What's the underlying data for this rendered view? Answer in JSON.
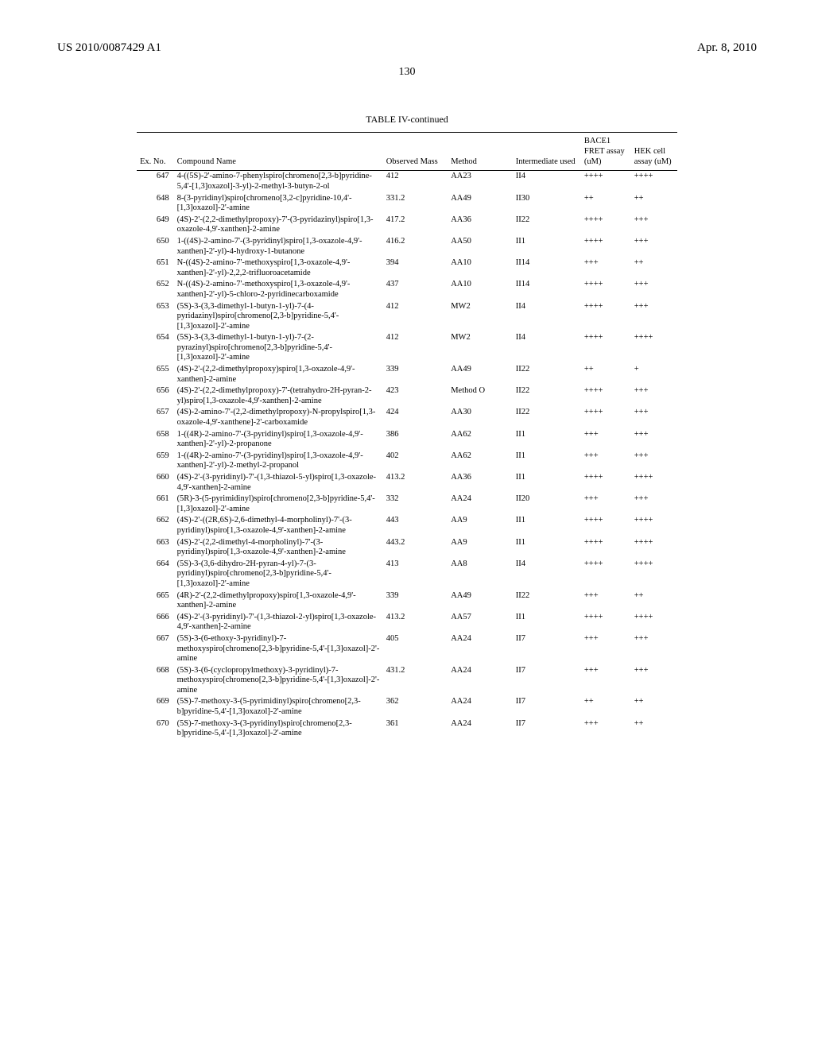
{
  "header": {
    "pub_number": "US 2010/0087429 A1",
    "pub_date": "Apr. 8, 2010"
  },
  "page_number": "130",
  "table": {
    "title": "TABLE IV-continued",
    "columns": {
      "ex_no": "Ex.\nNo.",
      "compound": "Compound Name",
      "mass": "Observed\nMass",
      "method": "Method",
      "intermediate": "Intermediate\nused",
      "bace1": "BACE1\nFRET\nassay\n(uM)",
      "hek": "HEK\ncell\nassay\n(uM)"
    },
    "rows": [
      {
        "ex_no": "647",
        "compound": "4-((5S)-2'-amino-7-phenylspiro[chromeno[2,3-b]pyridine-5,4'-[1,3]oxazol]-3-yl)-2-methyl-3-butyn-2-ol",
        "mass": "412",
        "method": "AA23",
        "intermediate": "II4",
        "bace1": "++++",
        "hek": "++++"
      },
      {
        "ex_no": "648",
        "compound": "8-(3-pyridinyl)spiro[chromeno[3,2-c]pyridine-10,4'-[1,3]oxazol]-2'-amine",
        "mass": "331.2",
        "method": "AA49",
        "intermediate": "II30",
        "bace1": "++",
        "hek": "++"
      },
      {
        "ex_no": "649",
        "compound": "(4S)-2'-(2,2-dimethylpropoxy)-7'-(3-pyridazinyl)spiro[1,3-oxazole-4,9'-xanthen]-2-amine",
        "mass": "417.2",
        "method": "AA36",
        "intermediate": "II22",
        "bace1": "++++",
        "hek": "+++"
      },
      {
        "ex_no": "650",
        "compound": "1-((4S)-2-amino-7'-(3-pyridinyl)spiro[1,3-oxazole-4,9'-xanthen]-2'-yl)-4-hydroxy-1-butanone",
        "mass": "416.2",
        "method": "AA50",
        "intermediate": "II1",
        "bace1": "++++",
        "hek": "+++"
      },
      {
        "ex_no": "651",
        "compound": "N-((4S)-2-amino-7'-methoxyspiro[1,3-oxazole-4,9'-xanthen]-2'-yl)-2,2,2-trifluoroacetamide",
        "mass": "394",
        "method": "AA10",
        "intermediate": "II14",
        "bace1": "+++",
        "hek": "++"
      },
      {
        "ex_no": "652",
        "compound": "N-((4S)-2-amino-7'-methoxyspiro[1,3-oxazole-4,9'-xanthen]-2'-yl)-5-chloro-2-pyridinecarboxamide",
        "mass": "437",
        "method": "AA10",
        "intermediate": "II14",
        "bace1": "++++",
        "hek": "+++"
      },
      {
        "ex_no": "653",
        "compound": "(5S)-3-(3,3-dimethyl-1-butyn-1-yl)-7-(4-pyridazinyl)spiro[chromeno[2,3-b]pyridine-5,4'-[1,3]oxazol]-2'-amine",
        "mass": "412",
        "method": "MW2",
        "intermediate": "II4",
        "bace1": "++++",
        "hek": "+++"
      },
      {
        "ex_no": "654",
        "compound": "(5S)-3-(3,3-dimethyl-1-butyn-1-yl)-7-(2-pyrazinyl)spiro[chromeno[2,3-b]pyridine-5,4'-[1,3]oxazol]-2'-amine",
        "mass": "412",
        "method": "MW2",
        "intermediate": "II4",
        "bace1": "++++",
        "hek": "++++"
      },
      {
        "ex_no": "655",
        "compound": "(4S)-2'-(2,2-dimethylpropoxy)spiro[1,3-oxazole-4,9'-xanthen]-2-amine",
        "mass": "339",
        "method": "AA49",
        "intermediate": "II22",
        "bace1": "++",
        "hek": "+"
      },
      {
        "ex_no": "656",
        "compound": "(4S)-2'-(2,2-dimethylpropoxy)-7'-(tetrahydro-2H-pyran-2-yl)spiro[1,3-oxazole-4,9'-xanthen]-2-amine",
        "mass": "423",
        "method": "Method O",
        "intermediate": "II22",
        "bace1": "++++",
        "hek": "+++"
      },
      {
        "ex_no": "657",
        "compound": "(4S)-2-amino-7'-(2,2-dimethylpropoxy)-N-propylspiro[1,3-oxazole-4,9'-xanthene]-2'-carboxamide",
        "mass": "424",
        "method": "AA30",
        "intermediate": "II22",
        "bace1": "++++",
        "hek": "+++"
      },
      {
        "ex_no": "658",
        "compound": "1-((4R)-2-amino-7'-(3-pyridinyl)spiro[1,3-oxazole-4,9'-xanthen]-2'-yl)-2-propanone",
        "mass": "386",
        "method": "AA62",
        "intermediate": "II1",
        "bace1": "+++",
        "hek": "+++"
      },
      {
        "ex_no": "659",
        "compound": "1-((4R)-2-amino-7'-(3-pyridinyl)spiro[1,3-oxazole-4,9'-xanthen]-2'-yl)-2-methyl-2-propanol",
        "mass": "402",
        "method": "AA62",
        "intermediate": "II1",
        "bace1": "+++",
        "hek": "+++"
      },
      {
        "ex_no": "660",
        "compound": "(4S)-2'-(3-pyridinyl)-7'-(1,3-thiazol-5-yl)spiro[1,3-oxazole-4,9'-xanthen]-2-amine",
        "mass": "413.2",
        "method": "AA36",
        "intermediate": "II1",
        "bace1": "++++",
        "hek": "++++"
      },
      {
        "ex_no": "661",
        "compound": "(5R)-3-(5-pyrimidinyl)spiro[chromeno[2,3-b]pyridine-5,4'-[1,3]oxazol]-2'-amine",
        "mass": "332",
        "method": "AA24",
        "intermediate": "II20",
        "bace1": "+++",
        "hek": "+++"
      },
      {
        "ex_no": "662",
        "compound": "(4S)-2'-((2R,6S)-2,6-dimethyl-4-morpholinyl)-7'-(3-pyridinyl)spiro[1,3-oxazole-4,9'-xanthen]-2-amine",
        "mass": "443",
        "method": "AA9",
        "intermediate": "II1",
        "bace1": "++++",
        "hek": "++++"
      },
      {
        "ex_no": "663",
        "compound": "(4S)-2'-(2,2-dimethyl-4-morpholinyl)-7'-(3-pyridinyl)spiro[1,3-oxazole-4,9'-xanthen]-2-amine",
        "mass": "443.2",
        "method": "AA9",
        "intermediate": "II1",
        "bace1": "++++",
        "hek": "++++"
      },
      {
        "ex_no": "664",
        "compound": "(5S)-3-(3,6-dihydro-2H-pyran-4-yl)-7-(3-pyridinyl)spiro[chromeno[2,3-b]pyridine-5,4'-[1,3]oxazol]-2'-amine",
        "mass": "413",
        "method": "AA8",
        "intermediate": "II4",
        "bace1": "++++",
        "hek": "++++"
      },
      {
        "ex_no": "665",
        "compound": "(4R)-2'-(2,2-dimethylpropoxy)spiro[1,3-oxazole-4,9'-xanthen]-2-amine",
        "mass": "339",
        "method": "AA49",
        "intermediate": "II22",
        "bace1": "+++",
        "hek": "++"
      },
      {
        "ex_no": "666",
        "compound": "(4S)-2'-(3-pyridinyl)-7'-(1,3-thiazol-2-yl)spiro[1,3-oxazole-4,9'-xanthen]-2-amine",
        "mass": "413.2",
        "method": "AA57",
        "intermediate": "II1",
        "bace1": "++++",
        "hek": "++++"
      },
      {
        "ex_no": "667",
        "compound": "(5S)-3-(6-ethoxy-3-pyridinyl)-7-methoxyspiro[chromeno[2,3-b]pyridine-5,4'-[1,3]oxazol]-2'-amine",
        "mass": "405",
        "method": "AA24",
        "intermediate": "II7",
        "bace1": "+++",
        "hek": "+++"
      },
      {
        "ex_no": "668",
        "compound": "(5S)-3-(6-(cyclopropylmethoxy)-3-pyridinyl)-7-methoxyspiro[chromeno[2,3-b]pyridine-5,4'-[1,3]oxazol]-2'-amine",
        "mass": "431.2",
        "method": "AA24",
        "intermediate": "II7",
        "bace1": "+++",
        "hek": "+++"
      },
      {
        "ex_no": "669",
        "compound": "(5S)-7-methoxy-3-(5-pyrimidinyl)spiro[chromeno[2,3-b]pyridine-5,4'-[1,3]oxazol]-2'-amine",
        "mass": "362",
        "method": "AA24",
        "intermediate": "II7",
        "bace1": "++",
        "hek": "++"
      },
      {
        "ex_no": "670",
        "compound": "(5S)-7-methoxy-3-(3-pyridinyl)spiro[chromeno[2,3-b]pyridine-5,4'-[1,3]oxazol]-2'-amine",
        "mass": "361",
        "method": "AA24",
        "intermediate": "II7",
        "bace1": "+++",
        "hek": "++"
      }
    ]
  }
}
